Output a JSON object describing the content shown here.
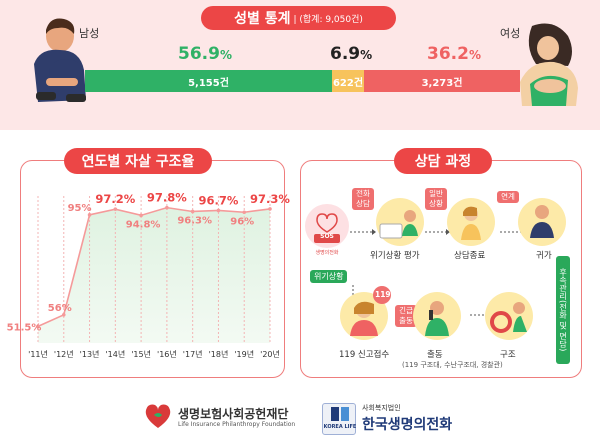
{
  "gender_stats": {
    "title": "성별 통계",
    "subtitle": "| (합계: 9,050건)",
    "male_label": "남성",
    "female_label": "여성",
    "male_pct": "56.9",
    "unknown_pct": "6.9",
    "female_pct": "36.2",
    "pct_sign": "%",
    "male_count": "5,155건",
    "unknown_count": "622건",
    "female_count": "3,273건",
    "colors": {
      "male": "#2fb166",
      "unknown": "#f7c35c",
      "female": "#ef6262"
    }
  },
  "chart_data": {
    "type": "area",
    "title": "연도별 자살 구조율",
    "categories": [
      "'11년",
      "'12년",
      "'13년",
      "'14년",
      "'15년",
      "'16년",
      "'17년",
      "'18년",
      "'19년",
      "'20년"
    ],
    "values": [
      51.5,
      56,
      95,
      97.2,
      94.8,
      97.8,
      96.3,
      96.7,
      96,
      97.3
    ],
    "value_labels": [
      "51.5%",
      "56%",
      "95%",
      "97.2%",
      "94.8%",
      "97.8%",
      "96.3%",
      "96.7%",
      "96%",
      "97.3%"
    ],
    "ylim": [
      45,
      100
    ],
    "grid": true,
    "xlabel": "",
    "ylabel": ""
  },
  "process": {
    "title": "상담 과정",
    "tags": {
      "phone": "전화\n상담",
      "general": "일반\n상황",
      "link": "연계",
      "dispatch": "긴급\n출동",
      "num119": "119"
    },
    "sos_line1": "SOS",
    "sos_line2": "생명의전화",
    "crisis_tag": "위기상황",
    "steps": {
      "assess": "위기상황 평가",
      "end": "상담종료",
      "home": "귀가",
      "report": "119 신고접수",
      "dispatch": "출동",
      "rescue": "구조"
    },
    "followup": "후속관리(전화 및 면담)",
    "note": "(119 구조대, 수난구조대, 경찰관)"
  },
  "footer": {
    "org1": "생명보험사회공헌재단",
    "org1_en": "Life Insurance Philanthropy Foundation",
    "org2_small": "사회복지법인",
    "org2": "한국생명의전화",
    "org2_badge": "KOREA LIFE"
  }
}
